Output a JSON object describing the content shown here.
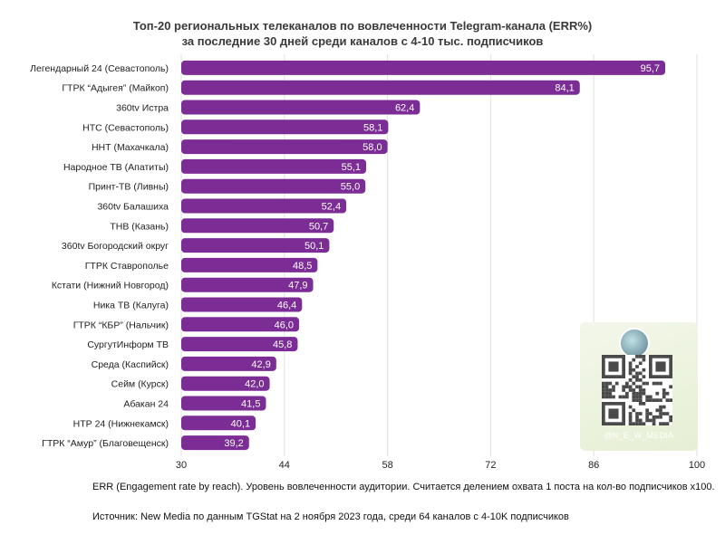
{
  "chart_data": {
    "type": "bar",
    "orientation": "horizontal",
    "title": [
      "Топ-20 региональных телеканалов по вовлеченности Telegram-канала (ERR%)",
      "за последние 30 дней среди каналов с 4-10 тыс. подписчиков"
    ],
    "categories": [
      "Легендарный 24 (Севастополь)",
      "ГТРК “Адыгея” (Майкоп)",
      "360tv Истра",
      "НТС (Севастополь)",
      "ННТ (Махачкала)",
      "Народное ТВ (Апатиты)",
      "Принт-ТВ (Ливны)",
      "360tv Балашиха",
      "ТНВ (Казань)",
      "360tv Богородский округ",
      "ГТРК Ставрополье",
      "Кстати (Нижний Новгород)",
      "Ника ТВ (Калуга)",
      "ГТРК “КБР” (Нальчик)",
      "СургутИнформ ТВ",
      "Среда (Каспийск)",
      "Сейм (Курск)",
      "Абакан 24",
      "НТР 24 (Нижнекамск)",
      "ГТРК “Амур” (Благовещенск)"
    ],
    "values": [
      95.7,
      84.1,
      62.4,
      58.1,
      58.0,
      55.1,
      55.0,
      52.4,
      50.7,
      50.1,
      48.5,
      47.9,
      46.4,
      46.0,
      45.8,
      42.9,
      42.0,
      41.5,
      40.1,
      39.2
    ],
    "value_labels": [
      "95,7",
      "84,1",
      "62,4",
      "58,1",
      "58,0",
      "55,1",
      "55,0",
      "52,4",
      "50,7",
      "50,1",
      "48,5",
      "47,9",
      "46,4",
      "46,0",
      "45,8",
      "42,9",
      "42,0",
      "41,5",
      "40,1",
      "39,2"
    ],
    "xlim": [
      30,
      100
    ],
    "x_ticks": [
      30,
      44,
      58,
      72,
      86,
      100
    ],
    "grid": true,
    "bar_color": "#7b2d95"
  },
  "notes": {
    "definition": "ERR (Engagement rate by reach). Уровень вовлеченности аудитории. Считается делением охвата 1 поста на кол-во подписчиков х100.",
    "source": "Источник: New Media по данным TGStat на 2 ноября 2023 года, среди 64 каналов с 4-10K подписчиков"
  },
  "qr": {
    "handle": "@N_E_W_MEDIA"
  }
}
